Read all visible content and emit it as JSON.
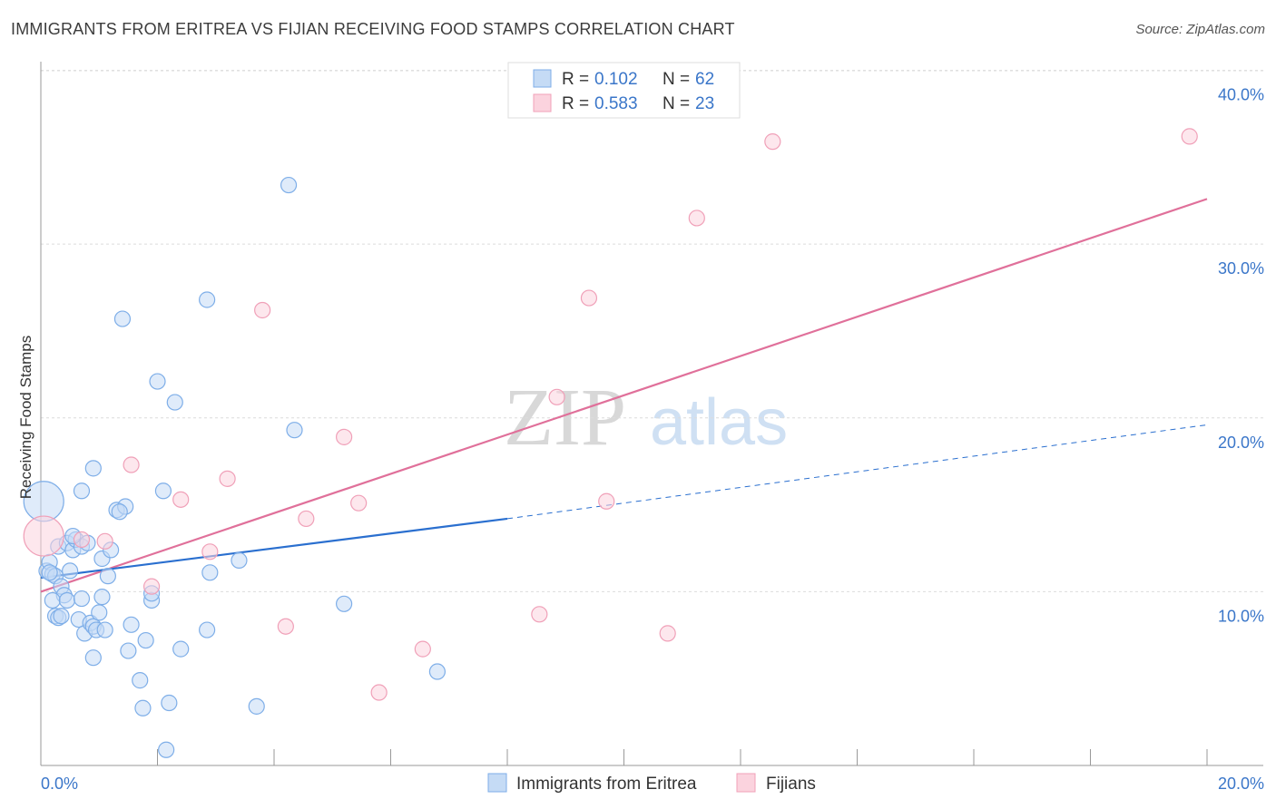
{
  "header": {
    "title": "IMMIGRANTS FROM ERITREA VS FIJIAN RECEIVING FOOD STAMPS CORRELATION CHART",
    "source": "Source: ZipAtlas.com"
  },
  "watermark": {
    "zip": "ZIP",
    "atlas": "atlas"
  },
  "legend": {
    "r_label": "R =",
    "n_label": "N =",
    "rows": [
      {
        "r": "0.102",
        "n": "62"
      },
      {
        "r": "0.583",
        "n": "23"
      }
    ]
  },
  "colors": {
    "blue": "#7eaee8",
    "blue_fill": "#c5dbf5",
    "blue_line": "#2a6fcf",
    "pink": "#f0a0b8",
    "pink_fill": "#fbd3de",
    "pink_line": "#e0709a",
    "axis_text": "#3a76c9"
  },
  "chart_data": {
    "type": "scatter",
    "title": "IMMIGRANTS FROM ERITREA VS FIJIAN RECEIVING FOOD STAMPS CORRELATION CHART",
    "xlabel": "",
    "ylabel": "Receiving Food Stamps",
    "xlim": [
      0,
      20
    ],
    "ylim": [
      0,
      40.5
    ],
    "x_tick_labels": [
      "0.0%",
      "20.0%"
    ],
    "y_ticks": [
      10,
      20,
      30,
      40
    ],
    "y_tick_labels": [
      "10.0%",
      "20.0%",
      "30.0%",
      "40.0%"
    ],
    "grid": true,
    "legend_position": "top-center",
    "series": [
      {
        "name": "Immigrants from Eritrea",
        "r": 0.102,
        "n": 62,
        "points": [
          {
            "x": 0.05,
            "y": 15.2,
            "big": true
          },
          {
            "x": 0.1,
            "y": 11.2
          },
          {
            "x": 0.15,
            "y": 11.7
          },
          {
            "x": 0.2,
            "y": 11.0
          },
          {
            "x": 0.25,
            "y": 10.9
          },
          {
            "x": 0.3,
            "y": 12.6
          },
          {
            "x": 0.35,
            "y": 10.3
          },
          {
            "x": 0.4,
            "y": 9.8
          },
          {
            "x": 0.45,
            "y": 12.8
          },
          {
            "x": 0.5,
            "y": 11.2
          },
          {
            "x": 0.55,
            "y": 12.4
          },
          {
            "x": 0.6,
            "y": 13.0
          },
          {
            "x": 0.7,
            "y": 12.6
          },
          {
            "x": 0.8,
            "y": 12.8
          },
          {
            "x": 0.2,
            "y": 9.5
          },
          {
            "x": 0.25,
            "y": 8.6
          },
          {
            "x": 0.3,
            "y": 8.5
          },
          {
            "x": 0.45,
            "y": 9.5
          },
          {
            "x": 0.65,
            "y": 8.4
          },
          {
            "x": 0.7,
            "y": 9.6
          },
          {
            "x": 0.75,
            "y": 7.6
          },
          {
            "x": 0.85,
            "y": 8.2
          },
          {
            "x": 0.9,
            "y": 8.0
          },
          {
            "x": 0.95,
            "y": 7.8
          },
          {
            "x": 1.0,
            "y": 8.8
          },
          {
            "x": 1.1,
            "y": 7.8
          },
          {
            "x": 1.05,
            "y": 9.7
          },
          {
            "x": 1.05,
            "y": 11.9
          },
          {
            "x": 1.15,
            "y": 10.9
          },
          {
            "x": 1.2,
            "y": 12.4
          },
          {
            "x": 0.7,
            "y": 15.8
          },
          {
            "x": 0.9,
            "y": 17.1
          },
          {
            "x": 1.3,
            "y": 14.7
          },
          {
            "x": 1.45,
            "y": 14.9
          },
          {
            "x": 1.4,
            "y": 25.7
          },
          {
            "x": 1.55,
            "y": 8.1
          },
          {
            "x": 1.5,
            "y": 6.6
          },
          {
            "x": 0.9,
            "y": 6.2
          },
          {
            "x": 1.7,
            "y": 4.9
          },
          {
            "x": 1.75,
            "y": 3.3
          },
          {
            "x": 1.8,
            "y": 7.2
          },
          {
            "x": 1.9,
            "y": 9.5
          },
          {
            "x": 1.9,
            "y": 9.9
          },
          {
            "x": 2.0,
            "y": 22.1
          },
          {
            "x": 2.1,
            "y": 15.8
          },
          {
            "x": 2.3,
            "y": 20.9
          },
          {
            "x": 2.2,
            "y": 3.6
          },
          {
            "x": 2.15,
            "y": 0.9
          },
          {
            "x": 2.4,
            "y": 6.7
          },
          {
            "x": 2.85,
            "y": 26.8
          },
          {
            "x": 2.85,
            "y": 7.8
          },
          {
            "x": 2.9,
            "y": 11.1
          },
          {
            "x": 3.4,
            "y": 11.8
          },
          {
            "x": 3.7,
            "y": 3.4
          },
          {
            "x": 4.25,
            "y": 33.4
          },
          {
            "x": 4.35,
            "y": 19.3
          },
          {
            "x": 5.2,
            "y": 9.3
          },
          {
            "x": 6.8,
            "y": 5.4
          },
          {
            "x": 1.35,
            "y": 14.6
          },
          {
            "x": 0.55,
            "y": 13.2
          },
          {
            "x": 0.35,
            "y": 8.6
          },
          {
            "x": 0.15,
            "y": 11.1
          }
        ],
        "trend": {
          "x0": 0,
          "y0": 10.8,
          "x1": 8,
          "y1": 14.2,
          "dash_x1": 20,
          "dash_y1": 19.6
        }
      },
      {
        "name": "Fijians",
        "r": 0.583,
        "n": 23,
        "points": [
          {
            "x": 0.05,
            "y": 13.2,
            "big": true
          },
          {
            "x": 0.7,
            "y": 13.0
          },
          {
            "x": 1.1,
            "y": 12.9
          },
          {
            "x": 1.55,
            "y": 17.3
          },
          {
            "x": 1.9,
            "y": 10.3
          },
          {
            "x": 2.4,
            "y": 15.3
          },
          {
            "x": 2.9,
            "y": 12.3
          },
          {
            "x": 3.2,
            "y": 16.5
          },
          {
            "x": 3.8,
            "y": 26.2
          },
          {
            "x": 4.2,
            "y": 8.0
          },
          {
            "x": 4.55,
            "y": 14.2
          },
          {
            "x": 5.2,
            "y": 18.9
          },
          {
            "x": 5.45,
            "y": 15.1
          },
          {
            "x": 5.8,
            "y": 4.2
          },
          {
            "x": 6.55,
            "y": 6.7
          },
          {
            "x": 8.55,
            "y": 8.7
          },
          {
            "x": 8.85,
            "y": 21.2
          },
          {
            "x": 9.4,
            "y": 26.9
          },
          {
            "x": 9.7,
            "y": 15.2
          },
          {
            "x": 10.75,
            "y": 7.6
          },
          {
            "x": 11.25,
            "y": 31.5
          },
          {
            "x": 12.55,
            "y": 35.9
          },
          {
            "x": 19.7,
            "y": 36.2
          }
        ],
        "trend": {
          "x0": 0,
          "y0": 10.0,
          "x1": 20,
          "y1": 32.6
        }
      }
    ]
  },
  "bottom_legend": [
    "Immigrants from Eritrea",
    "Fijians"
  ]
}
